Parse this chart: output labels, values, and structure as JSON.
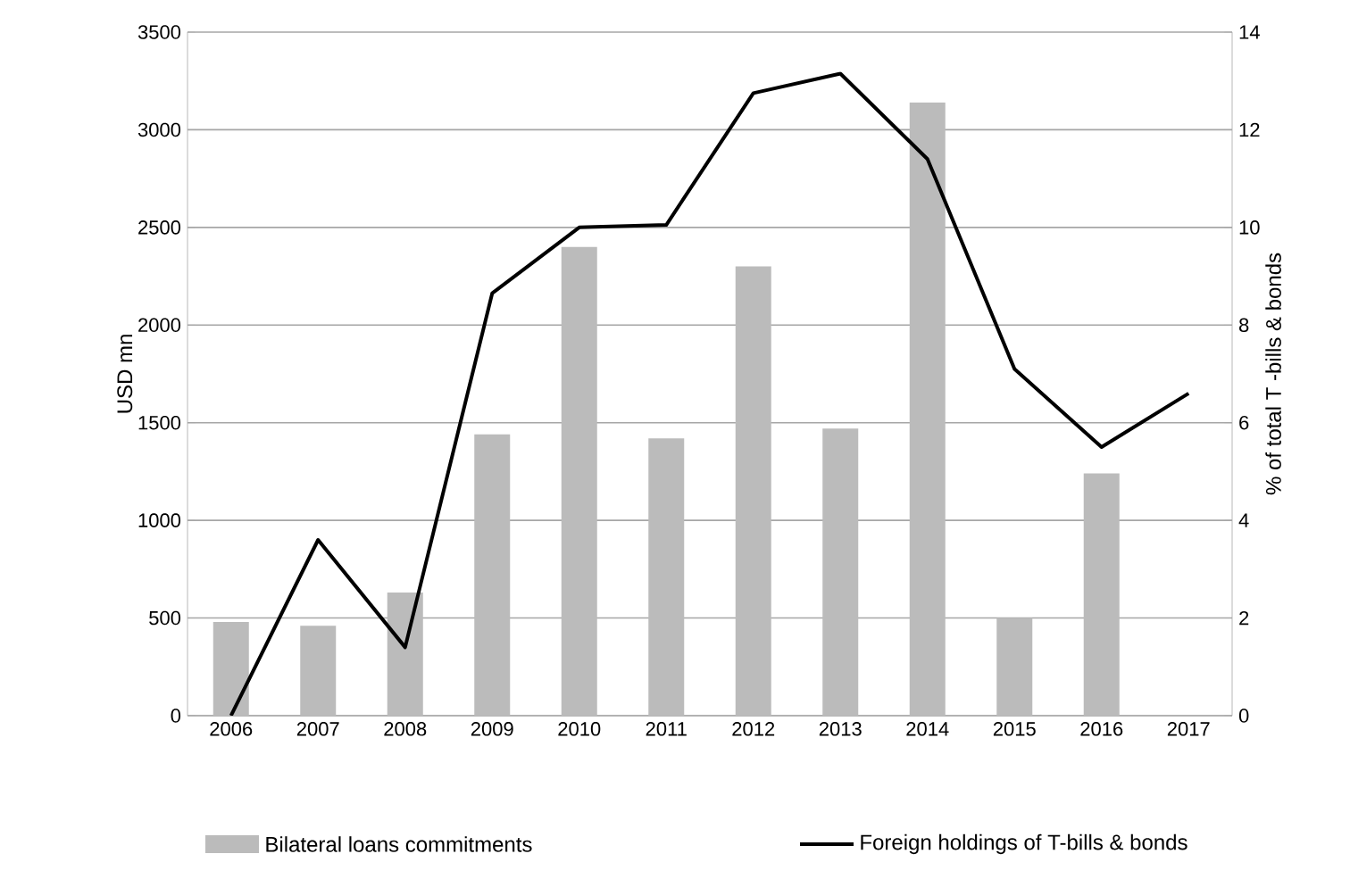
{
  "chart_data": {
    "type": "bar",
    "ylabel": "USD mn",
    "y2label": "% of total T -bills & bonds",
    "categories": [
      "2006",
      "2007",
      "2008",
      "2009",
      "2010",
      "2011",
      "2012",
      "2013",
      "2014",
      "2015",
      "2016",
      "2017"
    ],
    "series": [
      {
        "name": "Bilateral loans commitments",
        "color": "#bbbbbb",
        "values": [
          480,
          460,
          630,
          1440,
          2400,
          1420,
          2300,
          1470,
          3140,
          500,
          1240,
          null
        ]
      },
      {
        "name": "Foreign holdings of T-bills & bonds",
        "type": "line",
        "axis": "y2",
        "color": "#000000",
        "values": [
          0,
          3.6,
          1.4,
          8.65,
          10.0,
          10.05,
          12.75,
          13.15,
          11.4,
          7.1,
          5.5,
          6.6
        ]
      }
    ],
    "ylim": [
      0,
      3500
    ],
    "yticks": [
      0,
      500,
      1000,
      1500,
      2000,
      2500,
      3000,
      3500
    ],
    "y2lim": [
      0,
      14
    ],
    "y2ticks": [
      0,
      2,
      4,
      6,
      8,
      10,
      12,
      14
    ],
    "grid": "y",
    "legend": "bottom",
    "marker": "none",
    "line_style": "solid"
  }
}
